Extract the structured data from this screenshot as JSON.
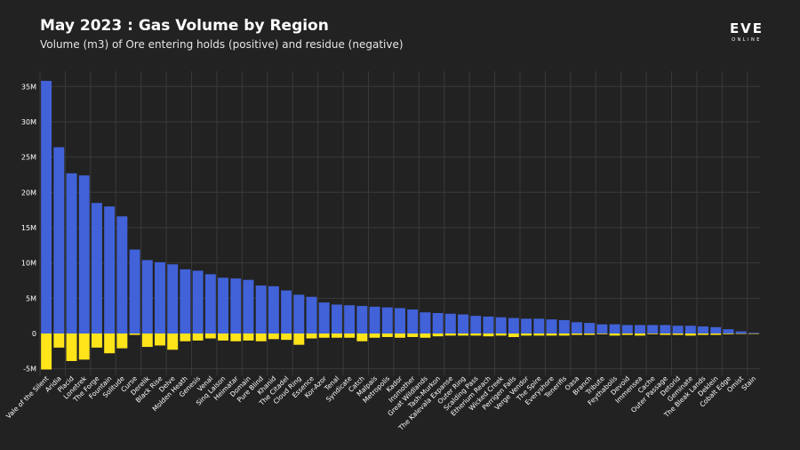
{
  "logo": {
    "main": "EVE",
    "sub": "ONLINE"
  },
  "colors": {
    "background": "#222222",
    "grid": "#3a3a3a",
    "positive": "#4162d8",
    "negative": "#ffe41a",
    "text": "#ffffff"
  },
  "chart_data": {
    "type": "bar",
    "title": "May 2023 : Gas Volume by Region",
    "subtitle": "Volume (m3) of Ore entering holds (positive) and residue (negative)",
    "xlabel": "",
    "ylabel": "",
    "ylim": [
      -6,
      37
    ],
    "yticks": [
      -5,
      0,
      5,
      10,
      15,
      20,
      25,
      30,
      35
    ],
    "ytick_labels": [
      "-5M",
      "0",
      "5M",
      "10M",
      "15M",
      "20M",
      "25M",
      "30M",
      "35M"
    ],
    "grid": true,
    "stacked_diverging": true,
    "categories": [
      "Vale of the Silent",
      "Aridia",
      "Placid",
      "Lonetrek",
      "The Forge",
      "Fountain",
      "Solitude",
      "Curse",
      "Derelik",
      "Black Rise",
      "Delve",
      "Molden Heath",
      "Genesis",
      "Venal",
      "Sinq Laison",
      "Heimatar",
      "Domain",
      "Pure Blind",
      "Khanid",
      "The Citadel",
      "Cloud Ring",
      "Essence",
      "Kor-Azor",
      "Tenal",
      "Syndicate",
      "Catch",
      "Malpais",
      "Metropolis",
      "Kador",
      "Insmother",
      "Great Wildlands",
      "Tash-Murkon",
      "The Kalevala Expanse",
      "Outer Ring",
      "Scalding Pass",
      "Etherium Reach",
      "Wicked Creek",
      "Perrigen Falls",
      "Verge Vendor",
      "The Spire",
      "Everyshore",
      "Tenerifis",
      "Oasa",
      "Branch",
      "Tribute",
      "Feythabolis",
      "Devoid",
      "Immensea",
      "Cache",
      "Outer Passage",
      "Detorid",
      "Geminate",
      "The Bleak Lands",
      "Deklein",
      "Cobalt Edge",
      "Omist",
      "Stain"
    ],
    "series": [
      {
        "name": "positive",
        "values": [
          35.8,
          26.4,
          22.7,
          22.4,
          18.5,
          18.0,
          16.6,
          11.9,
          10.4,
          10.1,
          9.8,
          9.1,
          8.9,
          8.4,
          7.9,
          7.8,
          7.6,
          6.8,
          6.7,
          6.1,
          5.5,
          5.2,
          4.4,
          4.1,
          4.0,
          3.9,
          3.8,
          3.7,
          3.6,
          3.4,
          3.0,
          2.9,
          2.8,
          2.7,
          2.5,
          2.4,
          2.3,
          2.2,
          2.1,
          2.1,
          2.0,
          1.9,
          1.6,
          1.5,
          1.3,
          1.3,
          1.2,
          1.2,
          1.2,
          1.2,
          1.1,
          1.1,
          1.0,
          0.9,
          0.6,
          0.3,
          0.1
        ]
      },
      {
        "name": "negative",
        "values": [
          -5.1,
          -2.0,
          -3.9,
          -3.7,
          -2.0,
          -2.8,
          -2.1,
          -0.2,
          -1.9,
          -1.7,
          -2.3,
          -1.1,
          -1.0,
          -0.7,
          -1.0,
          -1.1,
          -1.0,
          -1.1,
          -0.8,
          -0.9,
          -1.6,
          -0.7,
          -0.6,
          -0.6,
          -0.6,
          -1.1,
          -0.6,
          -0.5,
          -0.6,
          -0.5,
          -0.6,
          -0.4,
          -0.3,
          -0.3,
          -0.3,
          -0.4,
          -0.3,
          -0.5,
          -0.3,
          -0.3,
          -0.3,
          -0.3,
          -0.2,
          -0.2,
          -0.1,
          -0.3,
          -0.2,
          -0.3,
          -0.1,
          -0.2,
          -0.2,
          -0.3,
          -0.2,
          -0.2,
          -0.1,
          -0.05,
          -0.05
        ]
      }
    ]
  }
}
